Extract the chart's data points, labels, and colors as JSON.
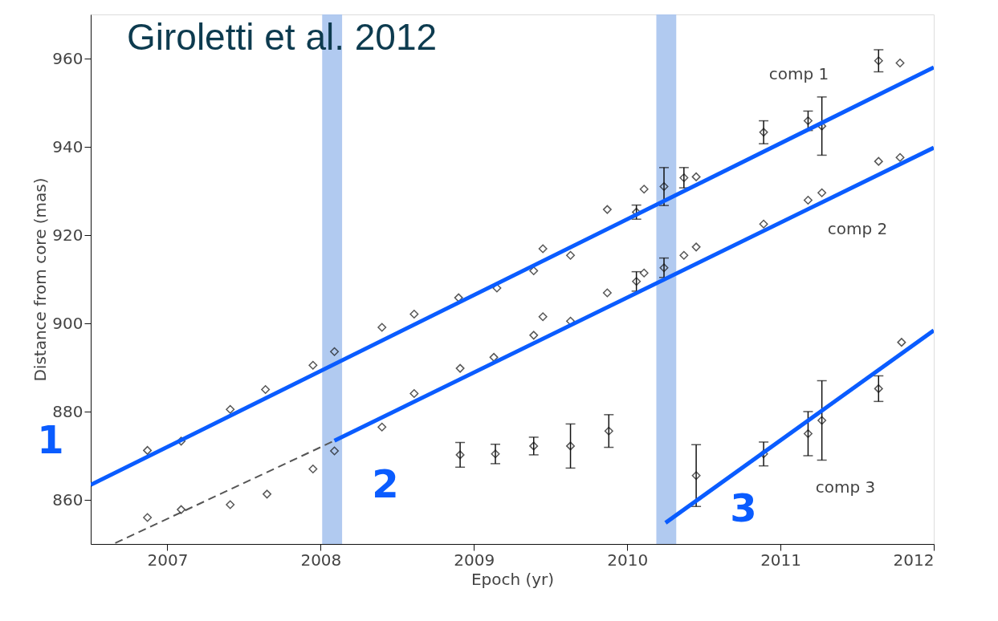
{
  "chart_data": {
    "type": "scatter",
    "xlabel": "Epoch (yr)",
    "ylabel": "Distance from core (mas)",
    "xlim": [
      2006.5,
      2012
    ],
    "ylim": [
      850,
      970
    ],
    "xticks": [
      2007,
      2008,
      2009,
      2010,
      2011,
      2012
    ],
    "yticks": [
      860,
      880,
      900,
      920,
      940,
      960
    ],
    "grid": false,
    "series": [
      {
        "type": "line",
        "color": "#555555",
        "line_style": "dashed",
        "marker": "none",
        "x": [
          2006.66,
          2008.09
        ],
        "values": [
          850.2,
          873.4
        ]
      },
      {
        "color": "#111111",
        "marker": "diamond",
        "x": [
          2006.87,
          2007.09,
          2007.41,
          2007.64,
          2007.95,
          2008.09,
          2008.4,
          2008.61,
          2008.9,
          2009.15,
          2009.39,
          2009.45,
          2009.63,
          2009.87,
          2010.06,
          2010.11,
          2010.24,
          2010.37,
          2010.45,
          2010.89,
          2011.18,
          2011.27,
          2011.64,
          2011.78
        ],
        "values": [
          871.2,
          873.3,
          880.5,
          885.0,
          890.5,
          893.6,
          899.1,
          902.1,
          905.8,
          908.0,
          911.9,
          916.9,
          915.4,
          925.8,
          925.2,
          930.4,
          931.0,
          933.0,
          933.2,
          943.3,
          945.9,
          944.7,
          959.5,
          959.0
        ],
        "errors": [
          null,
          null,
          null,
          null,
          null,
          null,
          null,
          null,
          null,
          null,
          null,
          null,
          null,
          null,
          1.6,
          null,
          4.3,
          2.3,
          null,
          2.6,
          2.2,
          6.6,
          2.5,
          null
        ]
      },
      {
        "color": "#111111",
        "marker": "diamond",
        "x": [
          2006.87,
          2007.09,
          2007.41,
          2007.65,
          2007.95,
          2008.09,
          2008.4,
          2008.61,
          2008.91,
          2009.13,
          2009.39,
          2009.45,
          2009.63,
          2009.87,
          2010.06,
          2010.11,
          2010.24,
          2010.37,
          2010.45,
          2010.89,
          2011.18,
          2011.27,
          2011.64,
          2011.78
        ],
        "values": [
          856.0,
          857.8,
          858.9,
          861.3,
          867.0,
          871.1,
          876.5,
          884.1,
          889.8,
          892.3,
          897.3,
          901.5,
          900.5,
          906.9,
          909.5,
          911.4,
          912.6,
          915.4,
          917.3,
          922.5,
          927.9,
          929.6,
          936.7,
          937.6
        ],
        "errors": [
          null,
          null,
          null,
          null,
          null,
          null,
          null,
          null,
          null,
          null,
          null,
          null,
          null,
          null,
          2.2,
          null,
          2.2,
          null,
          null,
          null,
          null,
          null,
          null,
          null
        ]
      },
      {
        "color": "#111111",
        "marker": "diamond",
        "x": [
          2008.91,
          2009.14,
          2009.39,
          2009.63,
          2009.88,
          2010.45,
          2010.89,
          2011.18,
          2011.27,
          2011.64,
          2011.79
        ],
        "values": [
          870.2,
          870.4,
          872.2,
          872.2,
          875.6,
          865.5,
          870.4,
          875.0,
          878.0,
          885.2,
          895.7
        ],
        "errors": [
          2.8,
          2.2,
          2.0,
          5.0,
          3.7,
          7.0,
          2.7,
          5.0,
          9.0,
          2.9,
          null
        ]
      },
      {
        "type": "line",
        "color": "#0a5cff",
        "line_style": "solid",
        "marker": "none",
        "x": [
          2006.5,
          2012
        ],
        "values": [
          863.4,
          958.0
        ]
      },
      {
        "type": "line",
        "color": "#0a5cff",
        "line_style": "solid",
        "marker": "none",
        "x": [
          2008.09,
          2012
        ],
        "values": [
          873.4,
          939.8
        ]
      },
      {
        "type": "line",
        "color": "#0a5cff",
        "line_style": "solid",
        "marker": "none",
        "x": [
          2010.25,
          2012
        ],
        "values": [
          854.8,
          898.4
        ]
      }
    ],
    "bands": [
      {
        "axis": "x",
        "from": 2008.01,
        "to": 2008.14,
        "color": "#a9c4ee"
      },
      {
        "axis": "x",
        "from": 2010.19,
        "to": 2010.32,
        "color": "#a9c4ee"
      }
    ],
    "annotations": [
      "Giroletti et al. 2012",
      "comp 1",
      "comp 2",
      "comp 3",
      "1",
      "2",
      "3"
    ]
  }
}
